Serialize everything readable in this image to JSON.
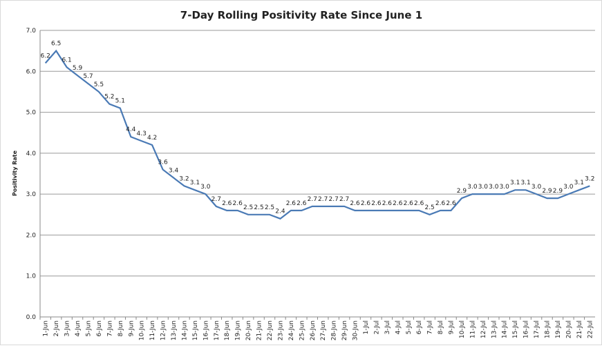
{
  "chart_data": {
    "type": "line",
    "title": "7-Day Rolling Positivity Rate Since June 1",
    "xlabel": "",
    "ylabel": "Positivity Rate",
    "ylim": [
      0,
      7
    ],
    "yticks": [
      "0.0",
      "1.0",
      "2.0",
      "3.0",
      "4.0",
      "5.0",
      "6.0",
      "7.0"
    ],
    "grid": "horizontal",
    "line_color": "#4a7ab5",
    "categories": [
      "1-Jun",
      "2-Jun",
      "3-Jun",
      "4-Jun",
      "5-Jun",
      "6-Jun",
      "7-Jun",
      "8-Jun",
      "9-Jun",
      "10-Jun",
      "11-Jun",
      "12-Jun",
      "13-Jun",
      "14-Jun",
      "15-Jun",
      "16-Jun",
      "17-Jun",
      "18-Jun",
      "19-Jun",
      "20-Jun",
      "21-Jun",
      "22-Jun",
      "23-Jun",
      "24-Jun",
      "25-Jun",
      "26-Jun",
      "27-Jun",
      "28-Jun",
      "29-Jun",
      "30-Jun",
      "1-Jul",
      "2-Jul",
      "3-Jul",
      "4-Jul",
      "5-Jul",
      "6-Jul",
      "7-Jul",
      "8-Jul",
      "9-Jul",
      "10-Jul",
      "11-Jul",
      "12-Jul",
      "13-Jul",
      "14-Jul",
      "15-Jul",
      "16-Jul",
      "17-Jul",
      "18-Jul",
      "19-Jul",
      "20-Jul",
      "21-Jul",
      "22-Jul"
    ],
    "values": [
      6.2,
      6.5,
      6.1,
      5.9,
      5.7,
      5.5,
      5.2,
      5.1,
      4.4,
      4.3,
      4.2,
      3.6,
      3.4,
      3.2,
      3.1,
      3.0,
      2.7,
      2.6,
      2.6,
      2.5,
      2.5,
      2.5,
      2.4,
      2.6,
      2.6,
      2.7,
      2.7,
      2.7,
      2.7,
      2.6,
      2.6,
      2.6,
      2.6,
      2.6,
      2.6,
      2.6,
      2.5,
      2.6,
      2.6,
      2.9,
      3.0,
      3.0,
      3.0,
      3.0,
      3.1,
      3.1,
      3.0,
      2.9,
      2.9,
      3.0,
      3.1,
      3.2
    ]
  }
}
